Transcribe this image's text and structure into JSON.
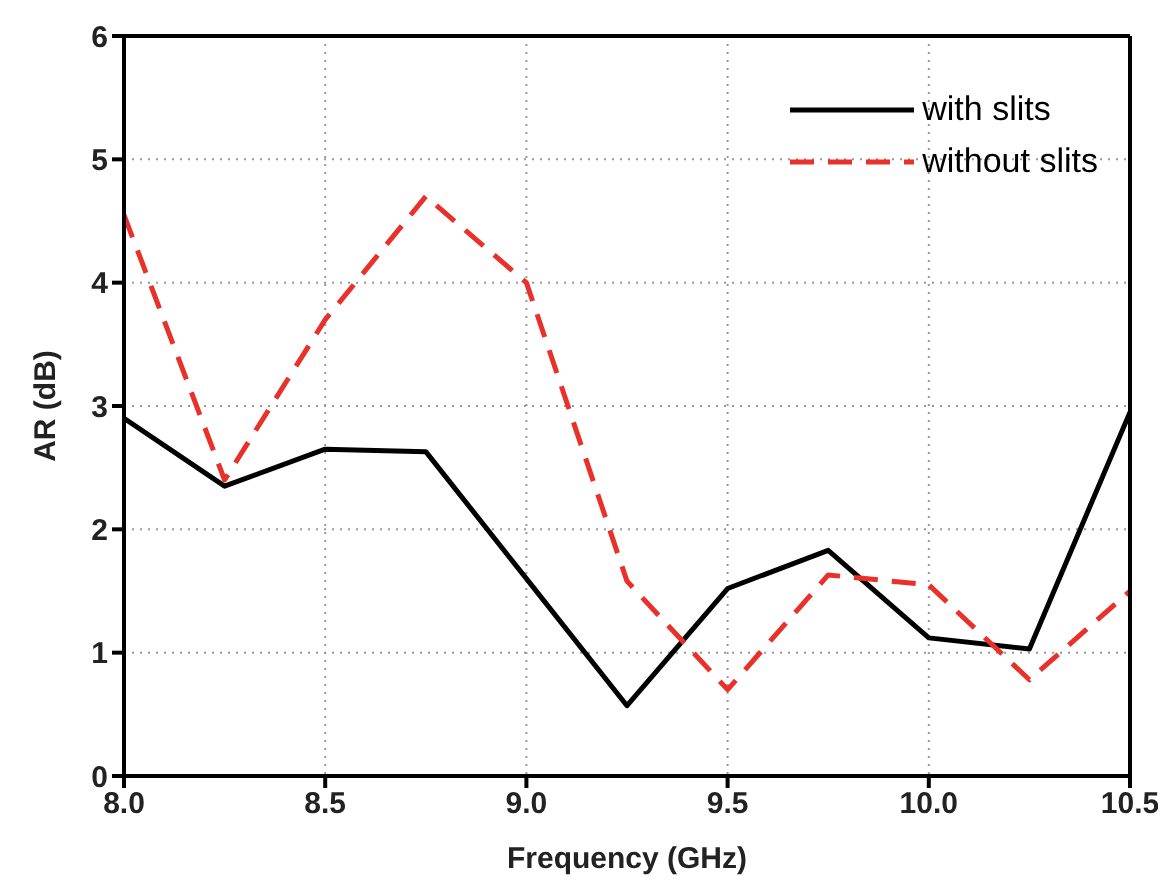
{
  "chart_data": {
    "type": "line",
    "xlabel": "Frequency (GHz)",
    "ylabel": "AR (dB)",
    "x": [
      8.0,
      8.25,
      8.5,
      8.75,
      9.0,
      9.25,
      9.5,
      9.75,
      10.0,
      10.25,
      10.5
    ],
    "series": [
      {
        "name": "with slits",
        "color": "#000000",
        "line_style": "solid",
        "values": [
          2.9,
          2.35,
          2.65,
          2.63,
          1.6,
          0.57,
          1.52,
          1.83,
          1.12,
          1.03,
          2.95
        ]
      },
      {
        "name": "without slits",
        "color": "#e8312a",
        "line_style": "dashed",
        "values": [
          4.55,
          2.4,
          3.7,
          4.7,
          4.0,
          1.58,
          0.7,
          1.63,
          1.55,
          0.78,
          1.5
        ]
      }
    ],
    "xlim": [
      8.0,
      10.5
    ],
    "xticks": [
      {
        "value": 8.0,
        "label": "8.0"
      },
      8.5,
      {
        "value": 9.0,
        "label": "9.0"
      },
      9.5,
      {
        "value": 10.0,
        "label": "10.0"
      },
      10.5
    ],
    "ylim": [
      0,
      6
    ],
    "yticks": [
      0,
      1,
      2,
      3,
      4,
      5,
      6
    ],
    "grid": true,
    "legend": "top right",
    "marker": "none"
  }
}
